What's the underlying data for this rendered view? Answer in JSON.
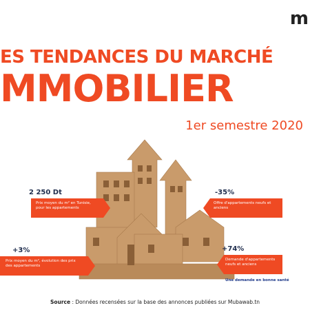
{
  "logo": "m",
  "header": {
    "title_line1": "ES TENDANCES DU MARCHÉ",
    "title_line2": "MMOBILIER",
    "subtitle": "1er semestre 2020"
  },
  "stats": [
    {
      "value": "2 250 Dt",
      "text": "Prix moyen du m² en Tunisie, pour les appartements"
    },
    {
      "value": "-35%",
      "text": "Offre d'appartements neufs et anciens"
    },
    {
      "value": "+3%",
      "text": "Prix moyen du m², évolution des prix des appartements"
    },
    {
      "value": "+74%",
      "text": "Demande d'appartements neufs et anciens",
      "note": "Une demande en bonne santé"
    }
  ],
  "footer": {
    "source_label": "Source",
    "source_text": ": Données recensées sur la base des annonces  publiées sur Mubawab.tn"
  }
}
